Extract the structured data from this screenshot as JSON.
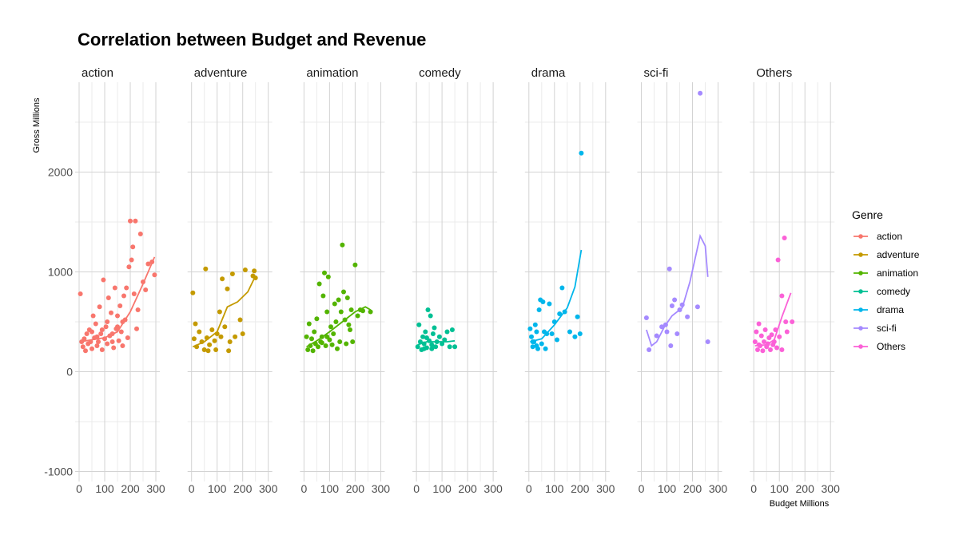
{
  "chart_data": {
    "type": "scatter",
    "title": "Correlation between Budget and Revenue",
    "xlabel": "Budget Millions",
    "ylabel": "Gross Millions",
    "xlim": [
      0,
      300
    ],
    "ylim": [
      -1100,
      2900
    ],
    "x_ticks": [
      0,
      100,
      200,
      300
    ],
    "y_ticks": [
      -1000,
      0,
      1000,
      2000
    ],
    "grid": true,
    "legend": {
      "title": "Genre",
      "placement": "right"
    },
    "panels": [
      {
        "name": "action",
        "color": "#F8766D",
        "points": [
          [
            5,
            780
          ],
          [
            10,
            300
          ],
          [
            15,
            250
          ],
          [
            20,
            330
          ],
          [
            25,
            210
          ],
          [
            30,
            380
          ],
          [
            35,
            280
          ],
          [
            40,
            420
          ],
          [
            45,
            300
          ],
          [
            50,
            230
          ],
          [
            55,
            560
          ],
          [
            60,
            340
          ],
          [
            65,
            480
          ],
          [
            70,
            260
          ],
          [
            75,
            300
          ],
          [
            80,
            650
          ],
          [
            85,
            380
          ],
          [
            90,
            220
          ],
          [
            95,
            920
          ],
          [
            100,
            330
          ],
          [
            105,
            450
          ],
          [
            110,
            280
          ],
          [
            115,
            740
          ],
          [
            120,
            360
          ],
          [
            125,
            590
          ],
          [
            130,
            300
          ],
          [
            135,
            240
          ],
          [
            140,
            840
          ],
          [
            145,
            430
          ],
          [
            150,
            560
          ],
          [
            155,
            310
          ],
          [
            160,
            660
          ],
          [
            165,
            400
          ],
          [
            170,
            260
          ],
          [
            175,
            760
          ],
          [
            180,
            520
          ],
          [
            185,
            840
          ],
          [
            190,
            340
          ],
          [
            195,
            1050
          ],
          [
            200,
            1510
          ],
          [
            205,
            1120
          ],
          [
            210,
            1250
          ],
          [
            215,
            780
          ],
          [
            220,
            1510
          ],
          [
            225,
            430
          ],
          [
            230,
            620
          ],
          [
            240,
            1380
          ],
          [
            250,
            900
          ],
          [
            260,
            820
          ],
          [
            270,
            1080
          ],
          [
            285,
            1100
          ],
          [
            295,
            970
          ],
          [
            50,
            400
          ],
          [
            70,
            350
          ],
          [
            90,
            420
          ],
          [
            110,
            500
          ],
          [
            130,
            380
          ],
          [
            150,
            450
          ],
          [
            170,
            500
          ]
        ],
        "smooth": [
          [
            5,
            300
          ],
          [
            50,
            320
          ],
          [
            100,
            340
          ],
          [
            150,
            400
          ],
          [
            200,
            600
          ],
          [
            250,
            880
          ],
          [
            295,
            1150
          ]
        ]
      },
      {
        "name": "adventure",
        "color": "#C49A00",
        "points": [
          [
            5,
            790
          ],
          [
            10,
            330
          ],
          [
            15,
            480
          ],
          [
            20,
            250
          ],
          [
            30,
            400
          ],
          [
            40,
            300
          ],
          [
            50,
            220
          ],
          [
            55,
            1030
          ],
          [
            60,
            340
          ],
          [
            65,
            210
          ],
          [
            70,
            270
          ],
          [
            80,
            420
          ],
          [
            90,
            310
          ],
          [
            95,
            220
          ],
          [
            100,
            380
          ],
          [
            110,
            600
          ],
          [
            115,
            350
          ],
          [
            120,
            930
          ],
          [
            130,
            450
          ],
          [
            140,
            830
          ],
          [
            145,
            210
          ],
          [
            150,
            300
          ],
          [
            160,
            980
          ],
          [
            170,
            350
          ],
          [
            190,
            520
          ],
          [
            200,
            380
          ],
          [
            210,
            1020
          ],
          [
            240,
            960
          ],
          [
            245,
            1010
          ],
          [
            250,
            940
          ]
        ],
        "smooth": [
          [
            5,
            250
          ],
          [
            50,
            300
          ],
          [
            100,
            400
          ],
          [
            140,
            650
          ],
          [
            180,
            700
          ],
          [
            220,
            800
          ],
          [
            250,
            960
          ]
        ]
      },
      {
        "name": "animation",
        "color": "#53B400",
        "points": [
          [
            10,
            350
          ],
          [
            15,
            220
          ],
          [
            20,
            480
          ],
          [
            25,
            260
          ],
          [
            30,
            330
          ],
          [
            35,
            210
          ],
          [
            40,
            400
          ],
          [
            45,
            280
          ],
          [
            50,
            530
          ],
          [
            55,
            250
          ],
          [
            60,
            880
          ],
          [
            65,
            300
          ],
          [
            70,
            350
          ],
          [
            75,
            760
          ],
          [
            80,
            990
          ],
          [
            85,
            260
          ],
          [
            90,
            600
          ],
          [
            95,
            950
          ],
          [
            100,
            320
          ],
          [
            105,
            450
          ],
          [
            110,
            270
          ],
          [
            115,
            380
          ],
          [
            120,
            680
          ],
          [
            125,
            500
          ],
          [
            130,
            230
          ],
          [
            135,
            720
          ],
          [
            140,
            300
          ],
          [
            145,
            600
          ],
          [
            150,
            1270
          ],
          [
            155,
            800
          ],
          [
            160,
            520
          ],
          [
            165,
            280
          ],
          [
            170,
            740
          ],
          [
            175,
            470
          ],
          [
            180,
            420
          ],
          [
            185,
            620
          ],
          [
            190,
            300
          ],
          [
            200,
            1070
          ],
          [
            210,
            560
          ],
          [
            220,
            620
          ],
          [
            230,
            610
          ],
          [
            260,
            600
          ],
          [
            70,
            290
          ],
          [
            90,
            350
          ]
        ],
        "smooth": [
          [
            10,
            250
          ],
          [
            50,
            310
          ],
          [
            100,
            400
          ],
          [
            150,
            500
          ],
          [
            200,
            600
          ],
          [
            240,
            650
          ],
          [
            260,
            620
          ]
        ]
      },
      {
        "name": "comedy",
        "color": "#00C094",
        "points": [
          [
            5,
            250
          ],
          [
            10,
            470
          ],
          [
            15,
            300
          ],
          [
            20,
            220
          ],
          [
            25,
            350
          ],
          [
            30,
            280
          ],
          [
            35,
            400
          ],
          [
            40,
            240
          ],
          [
            45,
            620
          ],
          [
            50,
            310
          ],
          [
            55,
            560
          ],
          [
            60,
            270
          ],
          [
            65,
            380
          ],
          [
            70,
            440
          ],
          [
            75,
            250
          ],
          [
            80,
            300
          ],
          [
            90,
            350
          ],
          [
            100,
            280
          ],
          [
            110,
            320
          ],
          [
            120,
            400
          ],
          [
            130,
            250
          ],
          [
            140,
            420
          ],
          [
            150,
            250
          ],
          [
            30,
            230
          ],
          [
            60,
            230
          ],
          [
            40,
            340
          ]
        ],
        "smooth": [
          [
            5,
            270
          ],
          [
            40,
            300
          ],
          [
            80,
            300
          ],
          [
            120,
            300
          ],
          [
            150,
            310
          ]
        ]
      },
      {
        "name": "drama",
        "color": "#00B6EB",
        "points": [
          [
            5,
            430
          ],
          [
            10,
            350
          ],
          [
            15,
            250
          ],
          [
            20,
            300
          ],
          [
            25,
            470
          ],
          [
            30,
            400
          ],
          [
            35,
            230
          ],
          [
            40,
            620
          ],
          [
            45,
            720
          ],
          [
            50,
            280
          ],
          [
            55,
            700
          ],
          [
            60,
            400
          ],
          [
            65,
            230
          ],
          [
            70,
            380
          ],
          [
            80,
            680
          ],
          [
            90,
            380
          ],
          [
            100,
            500
          ],
          [
            110,
            320
          ],
          [
            120,
            580
          ],
          [
            130,
            840
          ],
          [
            140,
            600
          ],
          [
            160,
            400
          ],
          [
            180,
            350
          ],
          [
            190,
            550
          ],
          [
            200,
            380
          ],
          [
            205,
            2190
          ],
          [
            15,
            300
          ],
          [
            30,
            260
          ]
        ],
        "smooth": [
          [
            5,
            300
          ],
          [
            50,
            330
          ],
          [
            100,
            470
          ],
          [
            150,
            640
          ],
          [
            180,
            850
          ],
          [
            205,
            1220
          ]
        ]
      },
      {
        "name": "sci-fi",
        "color": "#A58AFF",
        "points": [
          [
            20,
            540
          ],
          [
            30,
            220
          ],
          [
            60,
            360
          ],
          [
            80,
            450
          ],
          [
            95,
            470
          ],
          [
            100,
            400
          ],
          [
            110,
            1030
          ],
          [
            115,
            260
          ],
          [
            120,
            660
          ],
          [
            130,
            720
          ],
          [
            140,
            380
          ],
          [
            150,
            620
          ],
          [
            160,
            670
          ],
          [
            180,
            550
          ],
          [
            220,
            650
          ],
          [
            230,
            2790
          ],
          [
            260,
            300
          ]
        ],
        "smooth": [
          [
            20,
            420
          ],
          [
            40,
            260
          ],
          [
            60,
            300
          ],
          [
            90,
            450
          ],
          [
            120,
            560
          ],
          [
            160,
            640
          ],
          [
            190,
            900
          ],
          [
            230,
            1360
          ],
          [
            250,
            1260
          ],
          [
            260,
            950
          ]
        ]
      },
      {
        "name": "Others",
        "color": "#FB61D7",
        "points": [
          [
            5,
            300
          ],
          [
            10,
            400
          ],
          [
            15,
            220
          ],
          [
            20,
            480
          ],
          [
            25,
            260
          ],
          [
            30,
            360
          ],
          [
            35,
            210
          ],
          [
            40,
            300
          ],
          [
            45,
            420
          ],
          [
            50,
            250
          ],
          [
            55,
            280
          ],
          [
            60,
            340
          ],
          [
            65,
            220
          ],
          [
            70,
            370
          ],
          [
            75,
            270
          ],
          [
            80,
            300
          ],
          [
            85,
            420
          ],
          [
            90,
            240
          ],
          [
            95,
            1120
          ],
          [
            100,
            350
          ],
          [
            110,
            220
          ],
          [
            120,
            1340
          ],
          [
            125,
            500
          ],
          [
            130,
            400
          ],
          [
            150,
            500
          ],
          [
            110,
            760
          ],
          [
            20,
            270
          ]
        ],
        "smooth": [
          [
            5,
            260
          ],
          [
            50,
            270
          ],
          [
            80,
            320
          ],
          [
            110,
            550
          ],
          [
            145,
            790
          ]
        ]
      }
    ]
  }
}
